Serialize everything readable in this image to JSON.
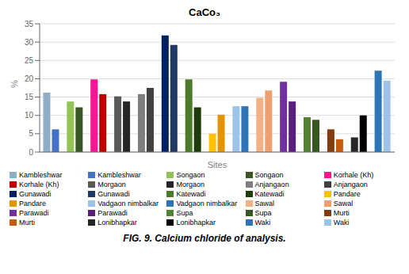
{
  "chart_data": {
    "type": "bar",
    "title": "CaCo₃",
    "xlabel": "Sites",
    "ylabel": "%",
    "caption": "FIG. 9. Calcium chloride of analysis.",
    "categories": [
      "Kambleshwar",
      "Songaon",
      "Korhale (Kh)",
      "Morgaon",
      "Anjangaon",
      "Gunawadi",
      "Katewadi",
      "Pandare",
      "Vadgaon nimbalkar",
      "Sawal",
      "Parawadi",
      "Supa",
      "Murti",
      "Lonibhapkar",
      "Waki"
    ],
    "series": [
      {
        "colors": [
          "#8fafc8",
          "#92c455",
          "#ff1493",
          "#595959",
          "#7f7f7f",
          "#002060",
          "#4e7a2c",
          "#ffc000",
          "#9dc3e6",
          "#f4b183",
          "#7030a0",
          "#548235",
          "#843c0c",
          "#262626",
          "#2e75b6"
        ],
        "values": [
          16.2,
          13.8,
          19.8,
          15.2,
          15.8,
          31.8,
          19.8,
          5.0,
          12.5,
          14.8,
          19.2,
          9.5,
          6.2,
          4.0,
          22.2
        ]
      },
      {
        "colors": [
          "#4472c4",
          "#375623",
          "#c00000",
          "#262626",
          "#404040",
          "#1f3864",
          "#1e3b0a",
          "#e59400",
          "#2e75b6",
          "#f0a070",
          "#5a1e80",
          "#375623",
          "#c55a11",
          "#000000",
          "#9dc3e6"
        ],
        "values": [
          6.2,
          12.2,
          15.8,
          13.8,
          17.5,
          29.2,
          12.2,
          10.2,
          12.5,
          16.8,
          13.8,
          8.8,
          3.5,
          10.0,
          19.5
        ]
      }
    ],
    "ylim": [
      0,
      35
    ],
    "yticks": [
      0,
      5,
      10,
      15,
      20,
      25,
      30,
      35
    ],
    "grid": true,
    "tick_labels": "y",
    "legend": "bottom"
  }
}
